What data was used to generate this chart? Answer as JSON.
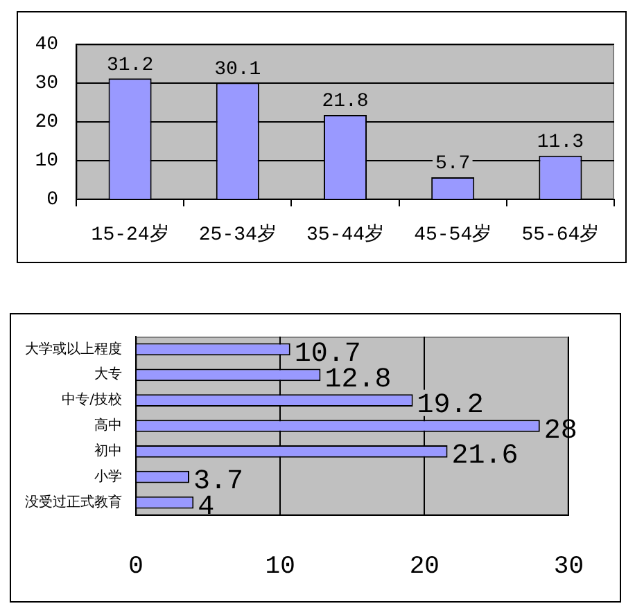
{
  "chart_data": [
    {
      "type": "bar",
      "categories": [
        "15-24岁",
        "25-34岁",
        "35-44岁",
        "45-54岁",
        "55-64岁"
      ],
      "values": [
        31.2,
        30.1,
        21.8,
        5.7,
        11.3
      ],
      "color": "#9999ff",
      "ylim": [
        0,
        40
      ],
      "yticks": [
        0,
        10,
        20,
        30,
        40
      ],
      "grid": "y",
      "data_labels": true
    },
    {
      "type": "bar",
      "orientation": "horizontal",
      "categories": [
        "大学或以上程度",
        "大专",
        "中专/技校",
        "高中",
        "初中",
        "小学",
        "没受过正式教育"
      ],
      "values": [
        10.7,
        12.8,
        19.2,
        28,
        21.6,
        3.7,
        4
      ],
      "color": "#9999ff",
      "xlim": [
        0,
        30
      ],
      "xticks": [
        0,
        10,
        20,
        30
      ],
      "grid": "x",
      "data_labels": true
    }
  ]
}
